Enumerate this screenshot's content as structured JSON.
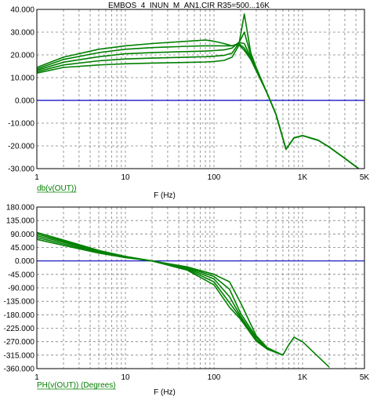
{
  "colors": {
    "trace": "#008000",
    "zero_line": "#0000c0",
    "grid": "#808080",
    "frame": "#000000",
    "legend": "#008000"
  },
  "title": "EMBOS_4_INUN_M_AN1.CIR R35=500...16K",
  "chart_data": [
    {
      "type": "line",
      "x_scale": "log",
      "xlim": [
        1,
        5000
      ],
      "ylim": [
        -30,
        40
      ],
      "xlabel": "F (Hz)",
      "legend": "db(v(OUT))",
      "x_tick_labels": [
        "1",
        "10",
        "100",
        "1K",
        "5K"
      ],
      "x_tick_values": [
        1,
        10,
        100,
        1000,
        5000
      ],
      "y_tick_labels": [
        "40.000",
        "30.000",
        "20.000",
        "10.000",
        "0.000",
        "-10.000",
        "-20.000",
        "-30.000"
      ],
      "y_tick_values": [
        40,
        30,
        20,
        10,
        0,
        -10,
        -20,
        -30
      ],
      "grid": true,
      "series": [
        {
          "x": [
            1,
            2,
            5,
            10,
            20,
            50,
            80,
            100,
            130,
            160,
            190,
            220,
            260,
            300,
            400,
            500,
            650,
            800,
            1000,
            1500,
            2000,
            3000,
            4300
          ],
          "y": [
            14.5,
            19.0,
            22.5,
            24.0,
            25.0,
            26.0,
            26.5,
            26.0,
            25.0,
            24.0,
            24.5,
            22.0,
            18.0,
            13.0,
            3.0,
            -6.0,
            -21.5,
            -16.5,
            -15.5,
            -17.5,
            -20.5,
            -25.5,
            -30.0
          ]
        },
        {
          "x": [
            1,
            2,
            5,
            10,
            20,
            50,
            80,
            100,
            130,
            160,
            190,
            220,
            260,
            300,
            400,
            500,
            650,
            800,
            1000,
            1500,
            2000,
            3000,
            4300
          ],
          "y": [
            13.8,
            18.0,
            21.0,
            22.5,
            23.2,
            23.8,
            24.0,
            24.0,
            24.0,
            24.0,
            25.0,
            23.0,
            18.5,
            13.5,
            3.0,
            -6.0,
            -21.5,
            -16.5,
            -15.5,
            -17.5,
            -20.5,
            -25.5,
            -30.0
          ]
        },
        {
          "x": [
            1,
            2,
            5,
            10,
            20,
            50,
            80,
            100,
            130,
            160,
            190,
            220,
            260,
            300,
            400,
            500,
            650,
            800,
            1000,
            1500,
            2000,
            3000,
            4300
          ],
          "y": [
            13.2,
            16.8,
            19.2,
            20.5,
            21.0,
            21.5,
            21.7,
            21.9,
            22.2,
            23.0,
            25.5,
            25.0,
            19.0,
            14.0,
            3.0,
            -6.0,
            -21.5,
            -16.5,
            -15.5,
            -17.5,
            -20.5,
            -25.5,
            -30.0
          ]
        },
        {
          "x": [
            1,
            2,
            5,
            10,
            20,
            50,
            80,
            100,
            130,
            160,
            190,
            220,
            260,
            300,
            400,
            500,
            650,
            800,
            1000,
            1500,
            2000,
            3000,
            4300
          ],
          "y": [
            12.6,
            15.6,
            17.4,
            18.2,
            18.6,
            19.0,
            19.2,
            19.4,
            19.8,
            20.8,
            25.0,
            30.0,
            20.0,
            14.0,
            3.0,
            -6.0,
            -21.5,
            -16.5,
            -15.5,
            -17.5,
            -20.5,
            -25.5,
            -30.0
          ]
        },
        {
          "x": [
            1,
            2,
            5,
            10,
            20,
            50,
            80,
            100,
            130,
            160,
            190,
            220,
            260,
            300,
            400,
            500,
            650,
            800,
            1000,
            1500,
            2000,
            3000,
            4300
          ],
          "y": [
            12.0,
            14.5,
            15.6,
            16.1,
            16.4,
            16.7,
            16.9,
            17.1,
            17.6,
            19.0,
            24.0,
            38.0,
            21.0,
            14.5,
            3.0,
            -6.0,
            -21.5,
            -16.5,
            -15.5,
            -17.5,
            -20.5,
            -25.5,
            -30.0
          ]
        }
      ]
    },
    {
      "type": "line",
      "x_scale": "log",
      "xlim": [
        1,
        5000
      ],
      "ylim": [
        -360,
        180
      ],
      "xlabel": "F (Hz)",
      "legend": "PH(v(OUT)) (Degrees)",
      "x_tick_labels": [
        "1",
        "10",
        "100",
        "1K",
        "5K"
      ],
      "x_tick_values": [
        1,
        10,
        100,
        1000,
        5000
      ],
      "y_tick_labels": [
        "180.000",
        "135.000",
        "90.000",
        "45.000",
        "0.000",
        "-45.000",
        "-90.000",
        "-135.000",
        "-180.000",
        "-225.000",
        "-270.000",
        "-315.000",
        "-360.000"
      ],
      "y_tick_values": [
        180,
        135,
        90,
        45,
        0,
        -45,
        -90,
        -135,
        -180,
        -225,
        -270,
        -315,
        -360
      ],
      "grid": true,
      "series": [
        {
          "x": [
            1,
            2,
            5,
            10,
            20,
            50,
            100,
            150,
            200,
            300,
            400,
            600,
            700,
            800,
            1000,
            1500,
            2000
          ],
          "y": [
            95,
            70,
            35,
            15,
            0,
            -20,
            -45,
            -70,
            -140,
            -250,
            -290,
            -315,
            -280,
            -255,
            -270,
            -320,
            -355
          ]
        },
        {
          "x": [
            1,
            2,
            5,
            10,
            20,
            50,
            100,
            150,
            200,
            300,
            400,
            600
          ],
          "y": [
            90,
            66,
            33,
            14,
            0,
            -22,
            -52,
            -95,
            -175,
            -255,
            -290,
            -315
          ]
        },
        {
          "x": [
            1,
            2,
            5,
            10,
            20,
            50,
            100,
            150,
            200,
            300,
            400,
            600
          ],
          "y": [
            84,
            62,
            31,
            13,
            0,
            -25,
            -60,
            -120,
            -185,
            -262,
            -292,
            -315
          ]
        },
        {
          "x": [
            1,
            2,
            5,
            10,
            20,
            50,
            100,
            150,
            200,
            300,
            400,
            600
          ],
          "y": [
            78,
            57,
            28,
            12,
            0,
            -28,
            -70,
            -140,
            -190,
            -265,
            -293,
            -315
          ]
        },
        {
          "x": [
            1,
            2,
            5,
            10,
            20,
            50,
            100,
            150,
            200,
            300,
            400,
            600
          ],
          "y": [
            72,
            52,
            26,
            11,
            0,
            -31,
            -80,
            -155,
            -195,
            -268,
            -295,
            -315
          ]
        }
      ]
    }
  ]
}
